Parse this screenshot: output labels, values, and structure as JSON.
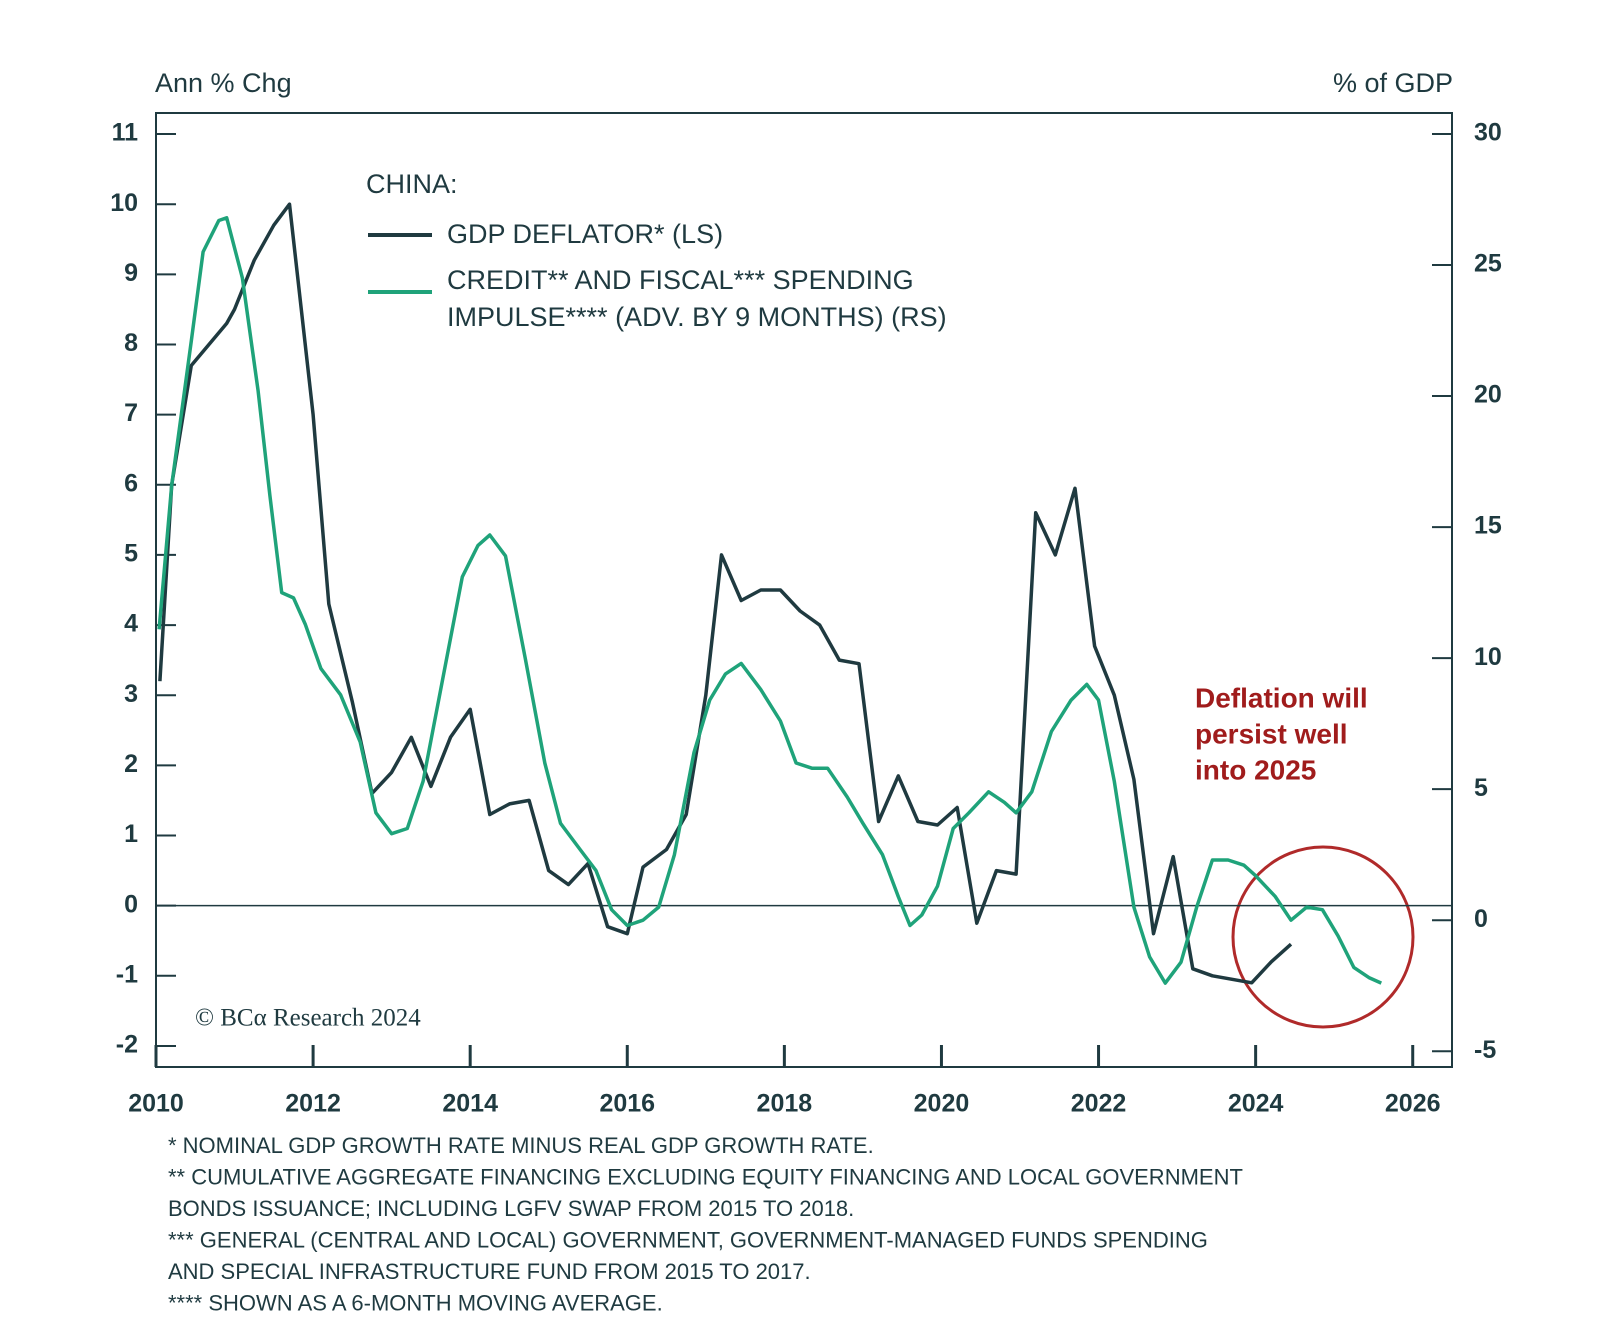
{
  "chart_data": {
    "type": "line",
    "ylabel": "Ann % Chg",
    "y2label": "% of GDP",
    "legend_title": "CHINA:",
    "source": "© BCα Research 2024",
    "annotation": {
      "lines": [
        "Deflation will",
        "persist well",
        "into 2025"
      ],
      "color": "#a01c1c"
    },
    "footnotes": [
      "* NOMINAL GDP GROWTH RATE MINUS REAL GDP GROWTH RATE.",
      "** CUMULATIVE AGGREGATE FINANCING EXCLUDING EQUITY FINANCING AND LOCAL GOVERNMENT",
      "BONDS ISSUANCE; INCLUDING LGFV SWAP FROM 2015 TO 2018.",
      "*** GENERAL (CENTRAL AND LOCAL) GOVERNMENT, GOVERNMENT-MANAGED FUNDS SPENDING",
      "AND SPECIAL INFRASTRUCTURE FUND FROM 2015 TO 2017.",
      "**** SHOWN AS A 6-MONTH MOVING AVERAGE."
    ],
    "xlim": [
      2010,
      2026.5
    ],
    "xticks": [
      2010,
      2012,
      2014,
      2016,
      2018,
      2020,
      2022,
      2024,
      2026
    ],
    "ylim": [
      -2.3,
      11.3
    ],
    "yticks": [
      -2,
      -1,
      0,
      1,
      2,
      3,
      4,
      5,
      6,
      7,
      8,
      9,
      10,
      11
    ],
    "y2lim": [
      -5.6,
      30.8
    ],
    "y2ticks": [
      -5,
      0,
      5,
      10,
      15,
      20,
      25,
      30
    ],
    "zero_line": true,
    "series": [
      {
        "name": "GDP DEFLATOR* (LS)",
        "color": "#1f3a40",
        "axis": "y",
        "x": [
          2010.05,
          2010.2,
          2010.45,
          2010.9,
          2011.0,
          2011.25,
          2011.5,
          2011.7,
          2012.0,
          2012.2,
          2012.5,
          2012.75,
          2013.0,
          2013.25,
          2013.5,
          2013.75,
          2014.0,
          2014.25,
          2014.5,
          2014.75,
          2015.0,
          2015.25,
          2015.5,
          2015.75,
          2016.0,
          2016.2,
          2016.5,
          2016.75,
          2017.0,
          2017.2,
          2017.45,
          2017.7,
          2017.95,
          2018.2,
          2018.45,
          2018.7,
          2018.95,
          2019.2,
          2019.45,
          2019.7,
          2019.95,
          2020.2,
          2020.45,
          2020.7,
          2020.95,
          2021.2,
          2021.45,
          2021.7,
          2021.95,
          2022.2,
          2022.45,
          2022.7,
          2022.95,
          2023.2,
          2023.45,
          2023.7,
          2023.95,
          2024.2,
          2024.45
        ],
        "values": [
          3.2,
          6.0,
          7.7,
          8.3,
          8.5,
          9.2,
          9.7,
          10.0,
          7.0,
          4.3,
          2.9,
          1.6,
          1.9,
          2.4,
          1.7,
          2.4,
          2.8,
          1.3,
          1.45,
          1.5,
          0.5,
          0.3,
          0.6,
          -0.3,
          -0.4,
          0.55,
          0.8,
          1.3,
          3.0,
          5.0,
          4.35,
          4.5,
          4.5,
          4.2,
          4.0,
          3.5,
          3.45,
          1.2,
          1.85,
          1.2,
          1.15,
          1.4,
          -0.25,
          0.5,
          0.45,
          5.6,
          5.0,
          5.95,
          3.7,
          3.0,
          1.8,
          -0.4,
          0.7,
          -0.9,
          -1.0,
          -1.05,
          -1.1,
          -0.8,
          -0.55
        ]
      },
      {
        "name": "CREDIT** AND FISCAL*** SPENDING IMPULSE**** (ADV. BY 9 MONTHS) (RS)",
        "color": "#1fa37a",
        "axis": "y2",
        "x": [
          2010.04,
          2010.2,
          2010.45,
          2010.6,
          2010.8,
          2010.9,
          2011.1,
          2011.3,
          2011.45,
          2011.6,
          2011.75,
          2011.9,
          2012.1,
          2012.35,
          2012.6,
          2012.8,
          2013.0,
          2013.2,
          2013.4,
          2013.65,
          2013.9,
          2014.1,
          2014.25,
          2014.45,
          2014.7,
          2014.95,
          2015.15,
          2015.4,
          2015.6,
          2015.8,
          2016.0,
          2016.2,
          2016.4,
          2016.6,
          2016.85,
          2017.05,
          2017.25,
          2017.45,
          2017.7,
          2017.95,
          2018.15,
          2018.35,
          2018.55,
          2018.8,
          2019.0,
          2019.25,
          2019.45,
          2019.6,
          2019.75,
          2019.95,
          2020.15,
          2020.35,
          2020.6,
          2020.8,
          2020.95,
          2021.15,
          2021.4,
          2021.65,
          2021.85,
          2022.0,
          2022.2,
          2022.45,
          2022.65,
          2022.85,
          2023.05,
          2023.25,
          2023.45,
          2023.65,
          2023.85,
          2024.0,
          2024.25,
          2024.45,
          2024.65,
          2024.85,
          2025.05,
          2025.25,
          2025.45,
          2025.6
        ],
        "values": [
          11.1,
          16.6,
          22.1,
          25.5,
          26.7,
          26.8,
          24.5,
          20.2,
          16.2,
          12.5,
          12.3,
          11.3,
          9.6,
          8.6,
          6.8,
          4.1,
          3.3,
          3.5,
          5.3,
          9.2,
          13.1,
          14.3,
          14.7,
          13.9,
          10.0,
          6.0,
          3.7,
          2.7,
          1.9,
          0.4,
          -0.2,
          0,
          0.5,
          2.5,
          6.4,
          8.4,
          9.4,
          9.8,
          8.8,
          7.6,
          6.0,
          5.8,
          5.8,
          4.7,
          3.7,
          2.5,
          0.9,
          -0.2,
          0.2,
          1.3,
          3.5,
          4.1,
          4.9,
          4.5,
          4.1,
          4.9,
          7.2,
          8.4,
          9.0,
          8.4,
          5.3,
          0.5,
          -1.4,
          -2.4,
          -1.6,
          0.5,
          2.3,
          2.3,
          2.1,
          1.7,
          0.9,
          0,
          0.5,
          0.4,
          -0.6,
          -1.8,
          -2.2,
          -2.4
        ]
      }
    ]
  }
}
